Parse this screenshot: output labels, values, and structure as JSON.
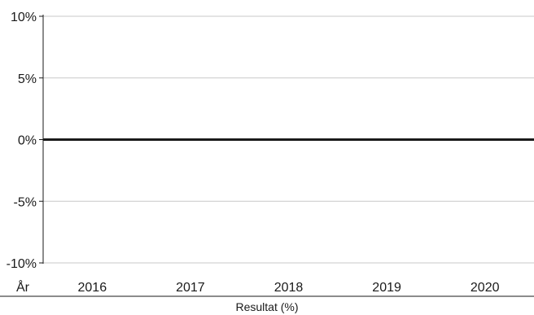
{
  "chart_data": {
    "type": "bar",
    "categories": [
      "2016",
      "2017",
      "2018",
      "2019",
      "2020"
    ],
    "series": [
      {
        "values": [
          0,
          0,
          0,
          0,
          0
        ]
      }
    ],
    "category_axis_label": "År",
    "caption": "Resultat (%)",
    "ylim": [
      -10,
      10
    ],
    "yticks": [
      10,
      5,
      0,
      -5,
      -10
    ],
    "ytick_labels": [
      "10%",
      "5%",
      "0%",
      "-5%",
      "-10%"
    ],
    "grid": true,
    "colors": {
      "gridline": "#c8c8c8",
      "axis": "#1a1a1a",
      "zero_line": "#1a1a1a"
    }
  }
}
